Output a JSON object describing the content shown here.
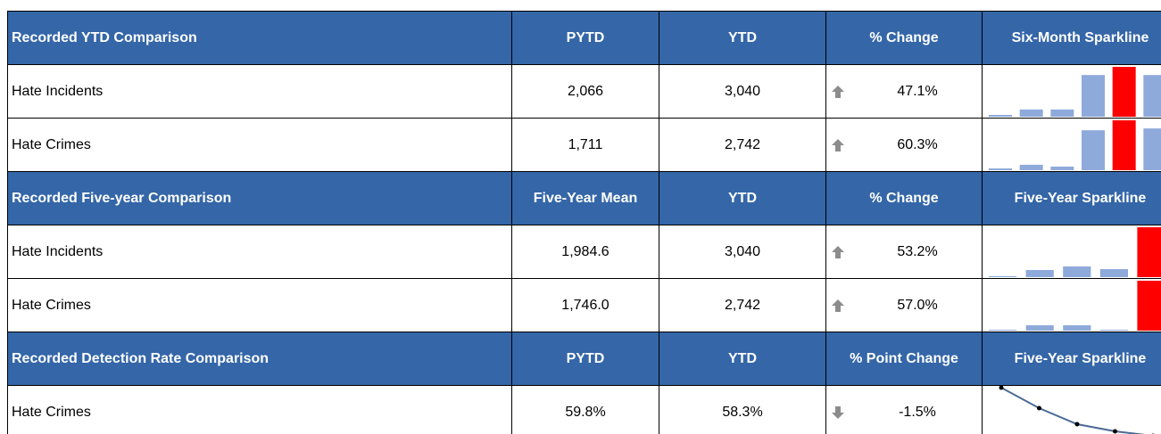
{
  "sections": [
    {
      "headers": [
        "Recorded YTD Comparison",
        "PYTD",
        "YTD",
        "% Change",
        "Six-Month Sparkline"
      ],
      "sparkline_type": "bar",
      "rows": [
        {
          "label": "Hate Incidents",
          "values": [
            "2,066",
            "3,040"
          ],
          "arrow": "up",
          "change": "47.1%",
          "sparkline": [
            2,
            8,
            8,
            46,
            55,
            46
          ],
          "highlight": 4
        },
        {
          "label": "Hate Crimes",
          "values": [
            "1,711",
            "2,742"
          ],
          "arrow": "up",
          "change": "60.3%",
          "sparkline": [
            2,
            6,
            4,
            44,
            55,
            46
          ],
          "highlight": 4
        }
      ]
    },
    {
      "headers": [
        "Recorded Five-year Comparison",
        "Five-Year Mean",
        "YTD",
        "% Change",
        "Five-Year Sparkline"
      ],
      "sparkline_type": "bar",
      "rows": [
        {
          "label": "Hate Incidents",
          "values": [
            "1,984.6",
            "3,040"
          ],
          "arrow": "up",
          "change": "53.2%",
          "sparkline": [
            1,
            8,
            12,
            9,
            56
          ],
          "highlight": 4
        },
        {
          "label": "Hate Crimes",
          "values": [
            "1,746.0",
            "2,742"
          ],
          "arrow": "up",
          "change": "57.0%",
          "sparkline": [
            1,
            6,
            6,
            1,
            56
          ],
          "highlight": 4
        }
      ]
    },
    {
      "headers": [
        "Recorded Detection Rate Comparison",
        "PYTD",
        "YTD",
        "% Point Change",
        "Five-Year Sparkline"
      ],
      "sparkline_type": "line",
      "rows": [
        {
          "label": "Hate Crimes",
          "values": [
            "59.8%",
            "58.3%"
          ],
          "arrow": "down",
          "change": "-1.5%",
          "sparkline": [
            54,
            31,
            13,
            5,
            0
          ]
        }
      ]
    }
  ],
  "colors": {
    "header": "#3466a8",
    "bar": "#8eaadb",
    "highlight": "#ff0000",
    "line": "#4a6a96",
    "marker": "#000000",
    "arrow": "#8c8c8c"
  }
}
